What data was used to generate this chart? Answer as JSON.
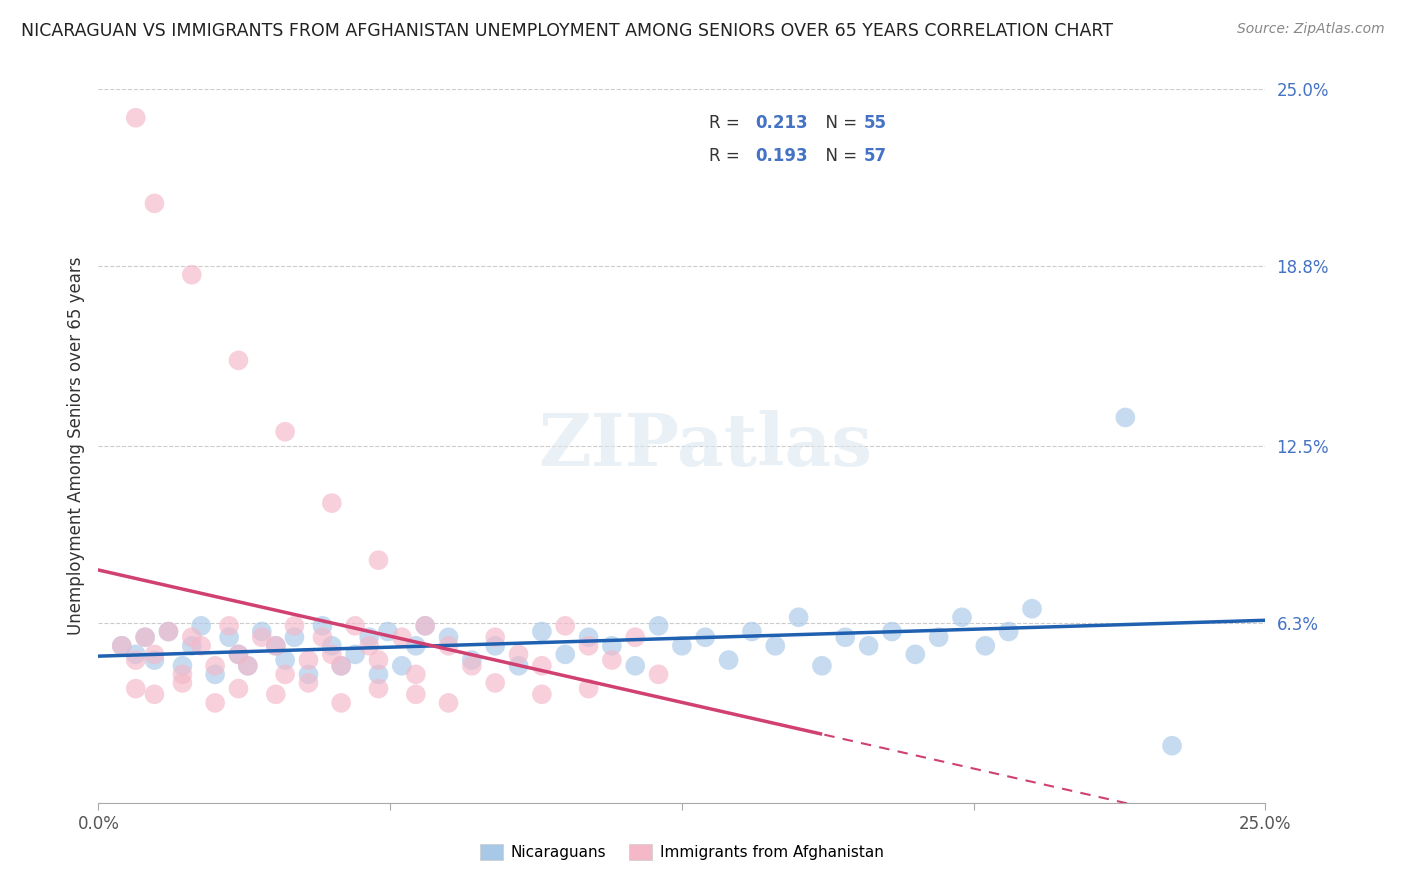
{
  "title": "NICARAGUAN VS IMMIGRANTS FROM AFGHANISTAN UNEMPLOYMENT AMONG SENIORS OVER 65 YEARS CORRELATION CHART",
  "source": "Source: ZipAtlas.com",
  "ylabel": "Unemployment Among Seniors over 65 years",
  "yticks": [
    0.0,
    0.063,
    0.125,
    0.188,
    0.25
  ],
  "ytick_labels": [
    "",
    "6.3%",
    "12.5%",
    "18.8%",
    "25.0%"
  ],
  "xlim": [
    0.0,
    0.25
  ],
  "ylim": [
    0.0,
    0.25
  ],
  "blue_color": "#a8c8e8",
  "pink_color": "#f4b8c8",
  "blue_line_color": "#2060b0",
  "pink_line_color": "#d04070",
  "blue_color_legend": "#a8c8e8",
  "pink_color_legend": "#f4b8c8",
  "watermark": "ZIPatlas",
  "blue_scatter_x": [
    0.005,
    0.008,
    0.01,
    0.012,
    0.015,
    0.018,
    0.02,
    0.022,
    0.025,
    0.028,
    0.03,
    0.032,
    0.035,
    0.038,
    0.04,
    0.042,
    0.045,
    0.048,
    0.05,
    0.052,
    0.055,
    0.058,
    0.06,
    0.062,
    0.065,
    0.068,
    0.07,
    0.075,
    0.08,
    0.085,
    0.09,
    0.095,
    0.1,
    0.105,
    0.11,
    0.115,
    0.12,
    0.125,
    0.13,
    0.135,
    0.14,
    0.145,
    0.15,
    0.155,
    0.16,
    0.165,
    0.17,
    0.175,
    0.18,
    0.185,
    0.19,
    0.195,
    0.2,
    0.22,
    0.23
  ],
  "blue_scatter_y": [
    0.055,
    0.052,
    0.058,
    0.05,
    0.06,
    0.048,
    0.055,
    0.062,
    0.045,
    0.058,
    0.052,
    0.048,
    0.06,
    0.055,
    0.05,
    0.058,
    0.045,
    0.062,
    0.055,
    0.048,
    0.052,
    0.058,
    0.045,
    0.06,
    0.048,
    0.055,
    0.062,
    0.058,
    0.05,
    0.055,
    0.048,
    0.06,
    0.052,
    0.058,
    0.055,
    0.048,
    0.062,
    0.055,
    0.058,
    0.05,
    0.06,
    0.055,
    0.065,
    0.048,
    0.058,
    0.055,
    0.06,
    0.052,
    0.058,
    0.065,
    0.055,
    0.06,
    0.068,
    0.135,
    0.02
  ],
  "pink_scatter_x": [
    0.005,
    0.008,
    0.01,
    0.012,
    0.015,
    0.018,
    0.02,
    0.022,
    0.025,
    0.028,
    0.03,
    0.032,
    0.035,
    0.038,
    0.04,
    0.042,
    0.045,
    0.048,
    0.05,
    0.052,
    0.055,
    0.058,
    0.06,
    0.065,
    0.068,
    0.07,
    0.075,
    0.08,
    0.085,
    0.09,
    0.095,
    0.1,
    0.105,
    0.11,
    0.115,
    0.12,
    0.008,
    0.012,
    0.018,
    0.025,
    0.03,
    0.038,
    0.045,
    0.052,
    0.06,
    0.068,
    0.075,
    0.085,
    0.095,
    0.105,
    0.008,
    0.012,
    0.02,
    0.03,
    0.04,
    0.05,
    0.06
  ],
  "pink_scatter_y": [
    0.055,
    0.05,
    0.058,
    0.052,
    0.06,
    0.045,
    0.058,
    0.055,
    0.048,
    0.062,
    0.052,
    0.048,
    0.058,
    0.055,
    0.045,
    0.062,
    0.05,
    0.058,
    0.052,
    0.048,
    0.062,
    0.055,
    0.05,
    0.058,
    0.045,
    0.062,
    0.055,
    0.048,
    0.058,
    0.052,
    0.048,
    0.062,
    0.055,
    0.05,
    0.058,
    0.045,
    0.04,
    0.038,
    0.042,
    0.035,
    0.04,
    0.038,
    0.042,
    0.035,
    0.04,
    0.038,
    0.035,
    0.042,
    0.038,
    0.04,
    0.24,
    0.21,
    0.185,
    0.155,
    0.13,
    0.105,
    0.085
  ]
}
